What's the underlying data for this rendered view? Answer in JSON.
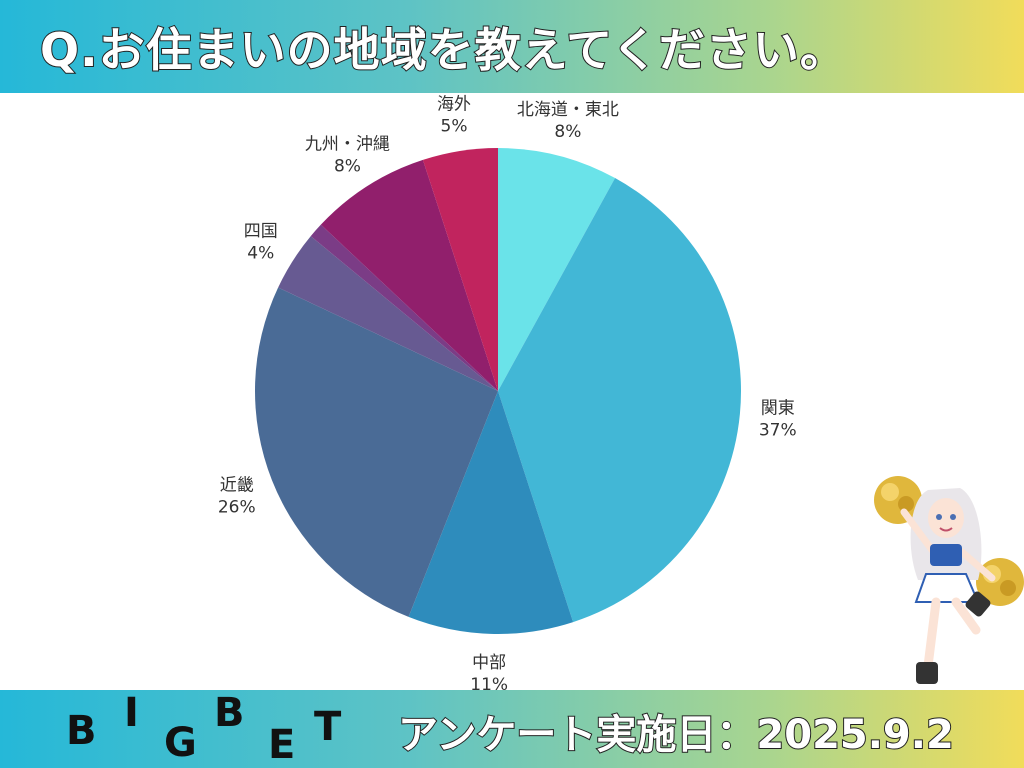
{
  "header": {
    "title": "Q.お住まいの地域を教えてください。"
  },
  "footer": {
    "logo_letters": [
      "B",
      "I",
      "G",
      "B",
      "E",
      "T"
    ],
    "date_text": "アンケート実施日：2025.9.2"
  },
  "chart_data": {
    "type": "pie",
    "title": "",
    "slices": [
      {
        "label": "北海道・東北",
        "value": 8,
        "value_text": "8%",
        "color": "#6ae3e9"
      },
      {
        "label": "関東",
        "value": 37,
        "value_text": "37%",
        "color": "#42b7d6"
      },
      {
        "label": "中部",
        "value": 11,
        "value_text": "11%",
        "color": "#2e8cbc"
      },
      {
        "label": "近畿",
        "value": 26,
        "value_text": "26%",
        "color": "#4a6b96"
      },
      {
        "label": "四国",
        "value": 4,
        "value_text": "4%",
        "color": "#675a92"
      },
      {
        "label": "",
        "value": 1,
        "value_text": "",
        "color": "#7b3c86"
      },
      {
        "label": "九州・沖縄",
        "value": 8,
        "value_text": "8%",
        "color": "#911f6c"
      },
      {
        "label": "海外",
        "value": 5,
        "value_text": "5%",
        "color": "#c1245e"
      }
    ]
  },
  "colors": {
    "header_gradient_start": "#25b8d8",
    "header_gradient_end": "#f1dc5a"
  },
  "decorations": {
    "mascot": "cheerleader-character-illustration"
  }
}
